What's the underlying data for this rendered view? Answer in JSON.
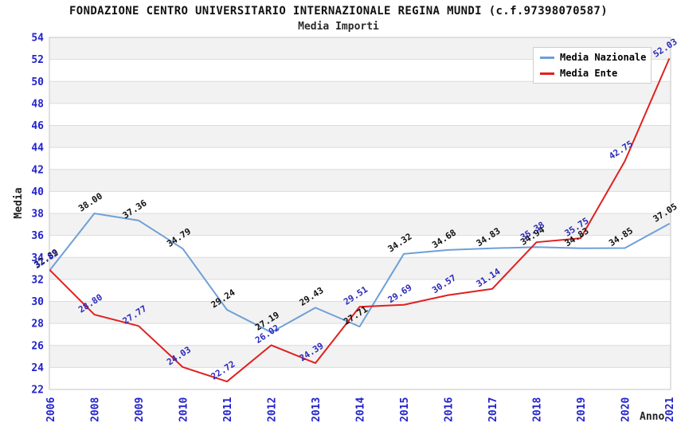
{
  "title": "FONDAZIONE CENTRO UNIVERSITARIO INTERNAZIONALE REGINA MUNDI (c.f.97398070587)",
  "subtitle": "Media Importi",
  "chart_data": {
    "type": "line",
    "x": [
      "2006",
      "2008",
      "2009",
      "2010",
      "2011",
      "2012",
      "2013",
      "2014",
      "2015",
      "2016",
      "2017",
      "2018",
      "2019",
      "2020",
      "2021"
    ],
    "series": [
      {
        "name": "Media Nazionale",
        "color": "#6F9FD8",
        "label_color": "#111111",
        "values": [
          32.89,
          38.0,
          37.36,
          34.79,
          29.24,
          27.19,
          29.43,
          27.71,
          34.32,
          34.68,
          34.83,
          34.94,
          34.83,
          34.85,
          37.05
        ]
      },
      {
        "name": "Media Ente",
        "color": "#E02020",
        "label_color": "#2A2ABB",
        "values": [
          32.82,
          28.8,
          27.77,
          24.03,
          22.72,
          26.02,
          24.39,
          29.51,
          29.69,
          30.57,
          31.14,
          35.38,
          35.75,
          42.75,
          52.03
        ]
      }
    ],
    "xlabel": "Anno",
    "ylabel": "Media",
    "ylim": [
      22,
      54
    ],
    "ytick_step": 2,
    "yticks": [
      22,
      24,
      26,
      28,
      30,
      32,
      34,
      36,
      38,
      40,
      42,
      44,
      46,
      48,
      50,
      52,
      54
    ],
    "grid": true,
    "legend_position": "top-right",
    "style": {
      "band_colors": [
        "#f2f2f2",
        "#ffffff"
      ],
      "grid_color": "#dcdcdc",
      "border_color": "#c6c6c6",
      "tick_color": "#2222CC"
    }
  }
}
